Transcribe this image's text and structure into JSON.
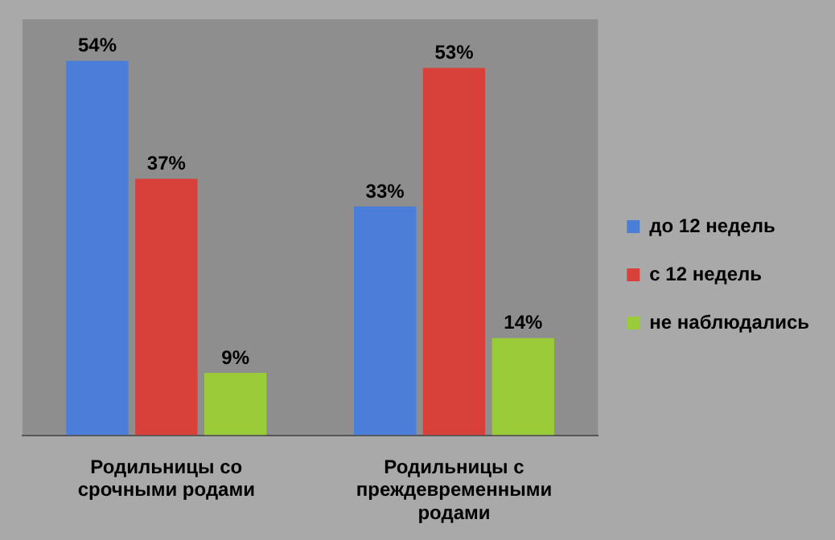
{
  "chart_data": {
    "type": "bar",
    "categories": [
      "Родильницы со срочными родами",
      "Родильницы с преждевременными родами"
    ],
    "series": [
      {
        "name": "до 12 недель",
        "color": "#4a7ed8",
        "values": [
          54,
          33
        ],
        "value_labels": [
          "54%",
          "33%"
        ]
      },
      {
        "name": "с 12 недель",
        "color": "#d8403a",
        "values": [
          37,
          53
        ],
        "value_labels": [
          "37%",
          "53%"
        ]
      },
      {
        "name": "не наблюдались",
        "color": "#9acb38",
        "values": [
          9,
          14
        ],
        "value_labels": [
          "9%",
          "14%"
        ]
      }
    ],
    "grid": false,
    "legend": "right"
  }
}
